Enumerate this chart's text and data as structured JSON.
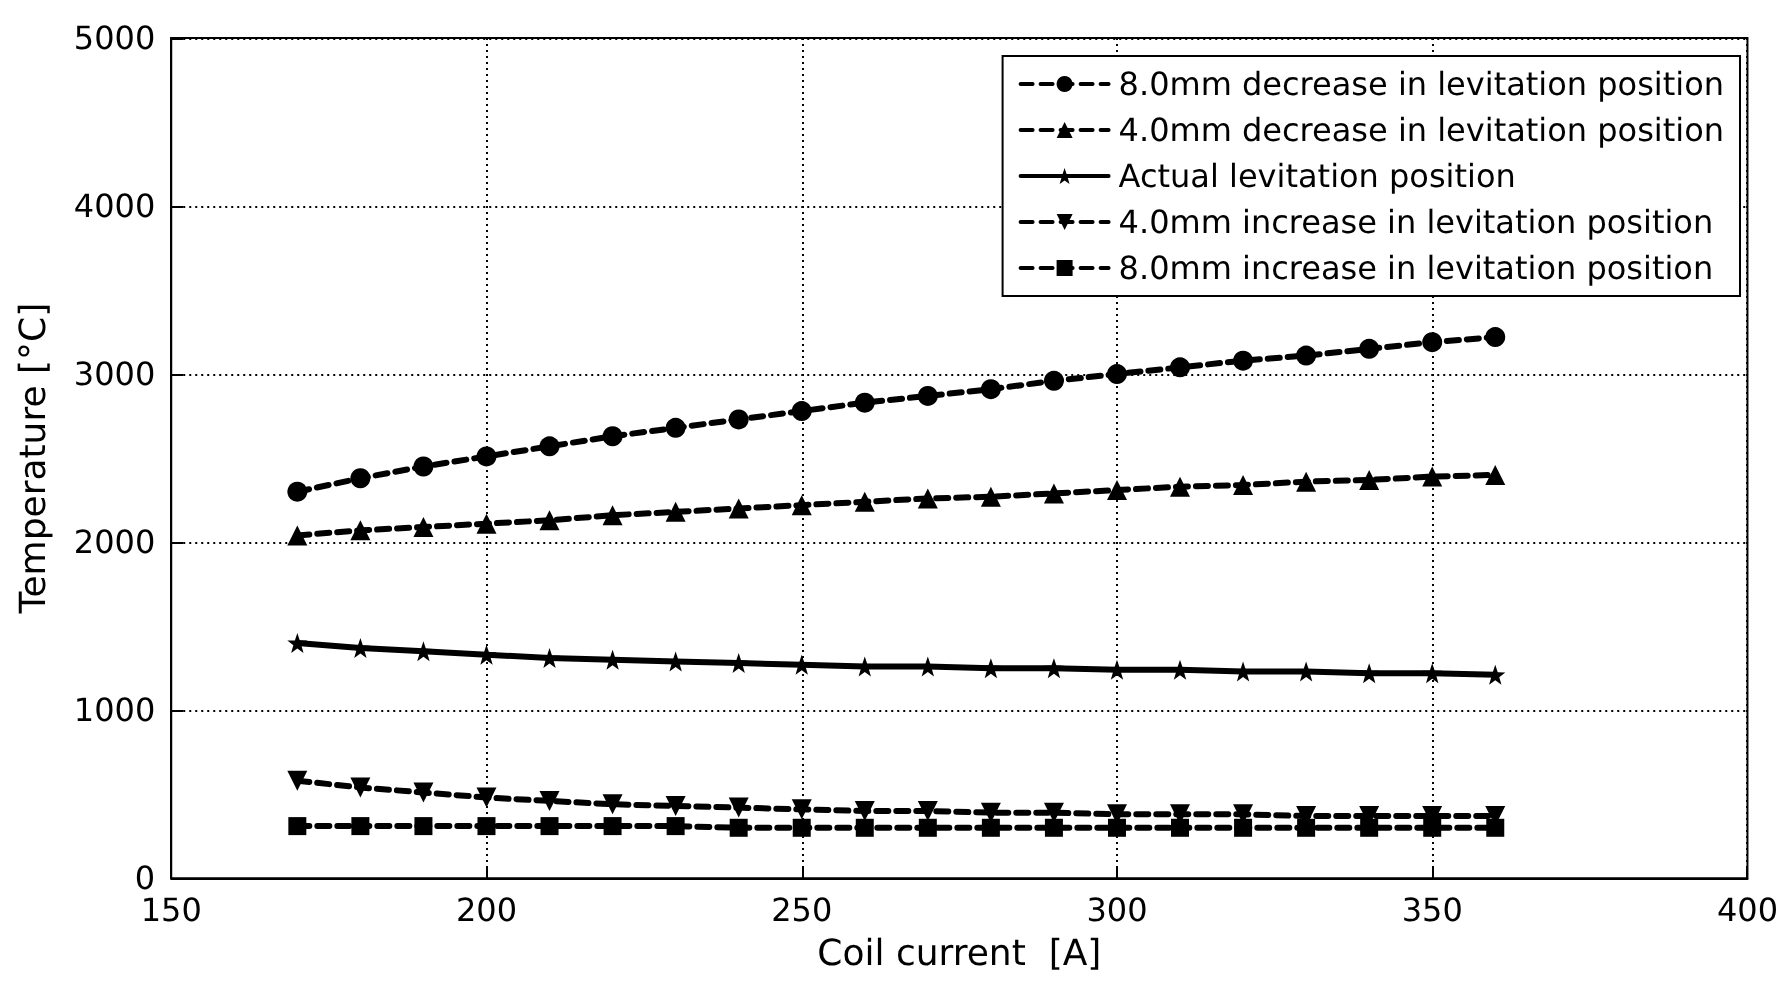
{
  "chart_data": {
    "type": "line",
    "xlabel": "Coil current  [A]",
    "ylabel": "Temperature [°C]",
    "x": [
      170,
      180,
      190,
      200,
      210,
      220,
      230,
      240,
      250,
      260,
      270,
      280,
      290,
      300,
      310,
      320,
      330,
      340,
      350,
      360
    ],
    "xlim": [
      150,
      400
    ],
    "xticks": [
      150,
      200,
      250,
      300,
      350,
      400
    ],
    "ylim": [
      0,
      5000
    ],
    "yticks": [
      0,
      1000,
      2000,
      3000,
      4000,
      5000
    ],
    "grid": true,
    "legend": "top right",
    "series": [
      {
        "name": "8.0mm decrease in levitation position",
        "color": "#000000",
        "marker": "circle",
        "line_style": "dashed",
        "values": [
          2300,
          2380,
          2450,
          2510,
          2570,
          2630,
          2680,
          2730,
          2780,
          2830,
          2870,
          2910,
          2960,
          3000,
          3040,
          3080,
          3110,
          3150,
          3190,
          3220
        ]
      },
      {
        "name": "4.0mm decrease in levitation position",
        "color": "#000000",
        "marker": "triangle",
        "line_style": "dashed",
        "values": [
          2040,
          2070,
          2090,
          2110,
          2130,
          2160,
          2180,
          2200,
          2220,
          2240,
          2260,
          2270,
          2290,
          2310,
          2330,
          2340,
          2360,
          2370,
          2390,
          2400
        ]
      },
      {
        "name": "Actual levitation position",
        "color": "#000000",
        "marker": "star",
        "line_style": "solid",
        "values": [
          1400,
          1370,
          1350,
          1330,
          1310,
          1300,
          1290,
          1280,
          1270,
          1260,
          1260,
          1250,
          1250,
          1240,
          1240,
          1230,
          1230,
          1220,
          1220,
          1210
        ]
      },
      {
        "name": "4.0mm increase in levitation position",
        "color": "#000000",
        "marker": "triangle-down",
        "line_style": "dashed",
        "values": [
          580,
          540,
          510,
          480,
          460,
          440,
          430,
          420,
          410,
          400,
          400,
          390,
          390,
          380,
          380,
          380,
          370,
          370,
          370,
          370
        ]
      },
      {
        "name": "8.0mm increase in levitation position",
        "color": "#000000",
        "marker": "square",
        "line_style": "dashed",
        "values": [
          310,
          310,
          310,
          310,
          310,
          310,
          310,
          300,
          300,
          300,
          300,
          300,
          300,
          300,
          300,
          300,
          300,
          300,
          300,
          300
        ]
      }
    ]
  }
}
